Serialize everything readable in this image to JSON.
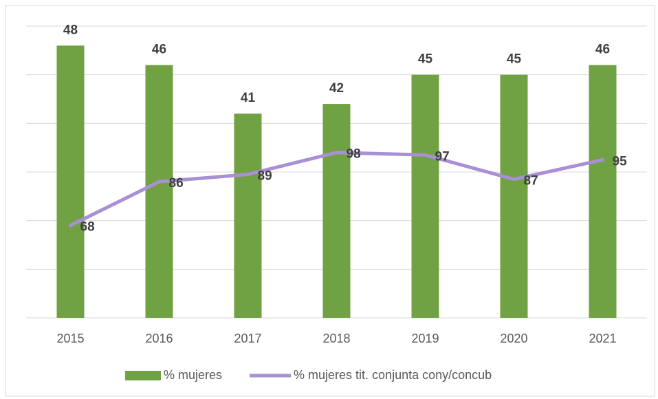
{
  "chart_data": {
    "type": "bar_line",
    "categories": [
      "2015",
      "2016",
      "2017",
      "2018",
      "2019",
      "2020",
      "2021"
    ],
    "series": [
      {
        "name": "% mujeres",
        "color": "#70a244",
        "type": "bar",
        "values": [
          48,
          46,
          41,
          42,
          45,
          45,
          46
        ]
      },
      {
        "name": "% mujeres tit. conjunta cony/concub",
        "color": "#a98fd3",
        "type": "line",
        "axis": "y2",
        "values": [
          68,
          86,
          89,
          98,
          97,
          87,
          95
        ]
      }
    ],
    "ylim": [
      20,
      50
    ],
    "yticks": [
      20,
      25,
      30,
      35,
      40,
      45,
      50
    ],
    "y2lim": [
      30,
      150
    ],
    "grid": true,
    "legend": "bottom"
  }
}
